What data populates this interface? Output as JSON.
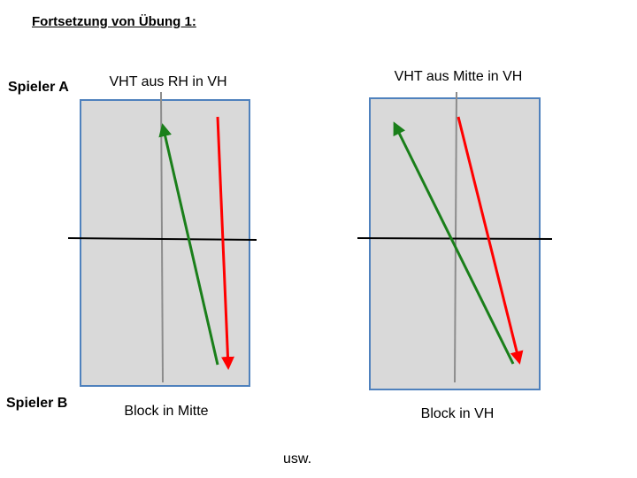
{
  "header": {
    "title": "Fortsetzung von Übung 1:"
  },
  "players": {
    "a": "Spieler A",
    "b": "Spieler B"
  },
  "diagrams": [
    {
      "top_caption": "VHT aus RH in VH",
      "bottom_caption": "Block in Mitte"
    },
    {
      "top_caption": "VHT aus Mitte in VH",
      "bottom_caption": "Block in VH"
    }
  ],
  "footer": {
    "text": "usw."
  },
  "colors": {
    "court_fill": "#d9d9d9",
    "court_border": "#4f81bd",
    "net_line": "#000000",
    "center_line": "#8c8c8c",
    "arrow_green": "#1a7f1a",
    "arrow_red": "#ff0000"
  }
}
